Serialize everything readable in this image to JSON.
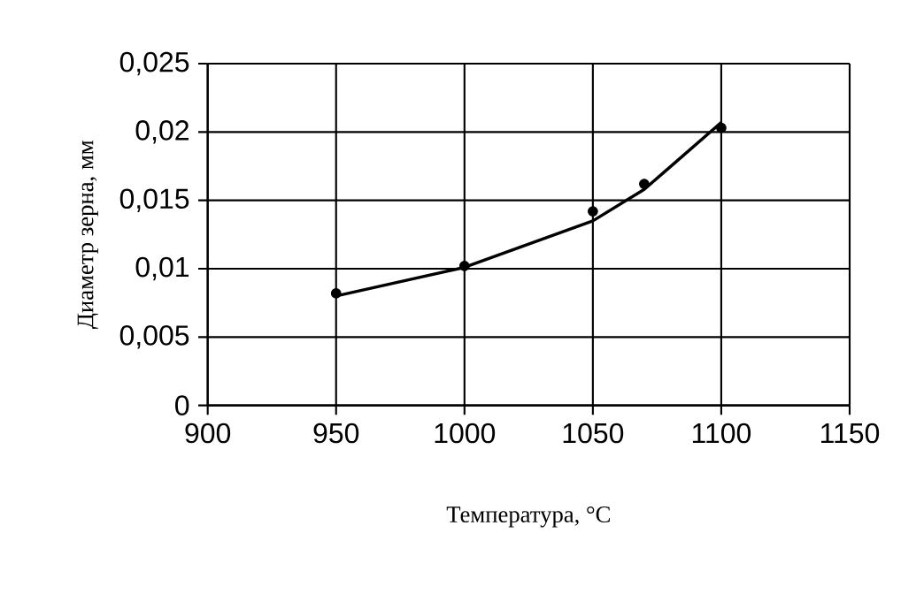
{
  "chart_data": {
    "type": "scatter",
    "xlabel": "Температура, °С",
    "ylabel": "Диаметр зерна, мм",
    "xlim": [
      900,
      1150
    ],
    "xticks": [
      900,
      950,
      1000,
      1050,
      1100,
      1150
    ],
    "ylim": [
      0,
      0.025
    ],
    "yticks": [
      0,
      {
        "value": 0.005,
        "label": "0,005"
      },
      {
        "value": 0.01,
        "label": "0,01"
      },
      {
        "value": 0.015,
        "label": "0,015"
      },
      {
        "value": 0.02,
        "label": "0,02"
      },
      {
        "value": 0.025,
        "label": "0,025"
      }
    ],
    "grid": true,
    "series": [
      {
        "marker": "circle",
        "color": "#000000",
        "x": [
          950,
          1000,
          1050,
          1070,
          1100
        ],
        "values": [
          0.0082,
          0.0102,
          0.0142,
          0.0162,
          0.0203
        ]
      },
      {
        "type": "line",
        "marker": "none",
        "color": "#000000",
        "x": [
          950,
          1000,
          1050,
          1070,
          1100
        ],
        "values": [
          0.008,
          0.0101,
          0.0135,
          0.0158,
          0.0207
        ]
      }
    ]
  }
}
